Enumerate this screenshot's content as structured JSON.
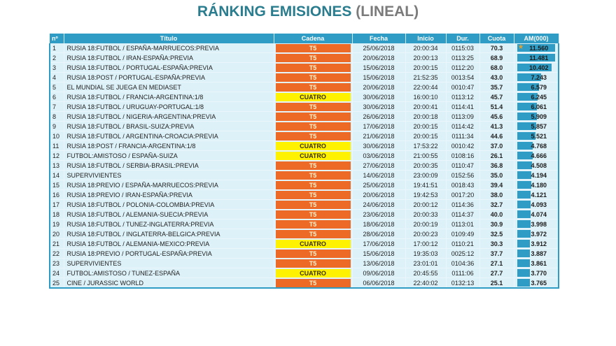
{
  "page_title": {
    "main": "RÁNKING EMISIONES",
    "sub": "(LINEAL)"
  },
  "table": {
    "headers": [
      "nº",
      "Título",
      "Cadena",
      "Fecha",
      "Inicio",
      "Dur.",
      "Cuota",
      "AM(000)"
    ],
    "rows": [
      {
        "n": "1",
        "titulo": "RUSIA 18:FUTBOL / ESPAÑA-MARRUECOS:PREVIA",
        "cadena": "T5",
        "fecha": "25/06/2018",
        "inicio": "20:00:34",
        "dur": "0115:03",
        "cuota": "70.3",
        "am": "11.560",
        "star": true
      },
      {
        "n": "2",
        "titulo": "RUSIA 18:FUTBOL / IRAN-ESPAÑA:PREVIA",
        "cadena": "T5",
        "fecha": "20/06/2018",
        "inicio": "20:00:13",
        "dur": "0113:25",
        "cuota": "68.9",
        "am": "11.481"
      },
      {
        "n": "3",
        "titulo": "RUSIA 18:FUTBOL / PORTUGAL-ESPAÑA:PREVIA",
        "cadena": "T5",
        "fecha": "15/06/2018",
        "inicio": "20:00:15",
        "dur": "0112:20",
        "cuota": "68.0",
        "am": "10.402"
      },
      {
        "n": "4",
        "titulo": "RUSIA 18:POST / PORTUGAL-ESPAÑA:PREVIA",
        "cadena": "T5",
        "fecha": "15/06/2018",
        "inicio": "21:52:35",
        "dur": "0013:54",
        "cuota": "43.0",
        "am": "7.243"
      },
      {
        "n": "5",
        "titulo": "EL MUNDIAL SE JUEGA EN MEDIASET",
        "cadena": "T5",
        "fecha": "20/06/2018",
        "inicio": "22:00:44",
        "dur": "0010:47",
        "cuota": "35.7",
        "am": "6.579"
      },
      {
        "n": "6",
        "titulo": "RUSIA 18:FUTBOL / FRANCIA-ARGENTINA:1/8",
        "cadena": "CUATRO",
        "fecha": "30/06/2018",
        "inicio": "16:00:10",
        "dur": "0113:12",
        "cuota": "45.7",
        "am": "6.245"
      },
      {
        "n": "7",
        "titulo": "RUSIA 18:FUTBOL / URUGUAY-PORTUGAL:1/8",
        "cadena": "T5",
        "fecha": "30/06/2018",
        "inicio": "20:00:41",
        "dur": "0114:41",
        "cuota": "51.4",
        "am": "6.061"
      },
      {
        "n": "8",
        "titulo": "RUSIA 18:FUTBOL / NIGERIA-ARGENTINA:PREVIA",
        "cadena": "T5",
        "fecha": "26/06/2018",
        "inicio": "20:00:18",
        "dur": "0113:09",
        "cuota": "45.6",
        "am": "5.909"
      },
      {
        "n": "9",
        "titulo": "RUSIA 18:FUTBOL / BRASIL-SUIZA:PREVIA",
        "cadena": "T5",
        "fecha": "17/06/2018",
        "inicio": "20:00:15",
        "dur": "0114:42",
        "cuota": "41.3",
        "am": "5.857"
      },
      {
        "n": "10",
        "titulo": "RUSIA 18:FUTBOL / ARGENTINA-CROACIA:PREVIA",
        "cadena": "T5",
        "fecha": "21/06/2018",
        "inicio": "20:00:15",
        "dur": "0111:34",
        "cuota": "44.6",
        "am": "5.521"
      },
      {
        "n": "11",
        "titulo": "RUSIA 18:POST / FRANCIA-ARGENTINA:1/8",
        "cadena": "CUATRO",
        "fecha": "30/06/2018",
        "inicio": "17:53:22",
        "dur": "0010:42",
        "cuota": "37.0",
        "am": "4.768"
      },
      {
        "n": "12",
        "titulo": "FUTBOL:AMISTOSO / ESPAÑA-SUIZA",
        "cadena": "CUATRO",
        "fecha": "03/06/2018",
        "inicio": "21:00:55",
        "dur": "0108:16",
        "cuota": "26.1",
        "am": "4.666"
      },
      {
        "n": "13",
        "titulo": "RUSIA 18:FUTBOL / SERBIA-BRASIL:PREVIA",
        "cadena": "T5",
        "fecha": "27/06/2018",
        "inicio": "20:00:35",
        "dur": "0110:47",
        "cuota": "36.8",
        "am": "4.508"
      },
      {
        "n": "14",
        "titulo": "SUPERVIVIENTES",
        "cadena": "T5",
        "fecha": "14/06/2018",
        "inicio": "23:00:09",
        "dur": "0152:56",
        "cuota": "35.0",
        "am": "4.194"
      },
      {
        "n": "15",
        "titulo": "RUSIA 18:PREVIO / ESPAÑA-MARRUECOS:PREVIA",
        "cadena": "T5",
        "fecha": "25/06/2018",
        "inicio": "19:41:51",
        "dur": "0018:43",
        "cuota": "39.4",
        "am": "4.180"
      },
      {
        "n": "16",
        "titulo": "RUSIA 18:PREVIO / IRAN-ESPAÑA:PREVIA",
        "cadena": "T5",
        "fecha": "20/06/2018",
        "inicio": "19:42:53",
        "dur": "0017:20",
        "cuota": "38.0",
        "am": "4.121"
      },
      {
        "n": "17",
        "titulo": "RUSIA 18:FUTBOL / POLONIA-COLOMBIA:PREVIA",
        "cadena": "T5",
        "fecha": "24/06/2018",
        "inicio": "20:00:12",
        "dur": "0114:36",
        "cuota": "32.7",
        "am": "4.093"
      },
      {
        "n": "18",
        "titulo": "RUSIA 18:FUTBOL / ALEMANIA-SUECIA:PREVIA",
        "cadena": "T5",
        "fecha": "23/06/2018",
        "inicio": "20:00:33",
        "dur": "0114:37",
        "cuota": "40.0",
        "am": "4.074"
      },
      {
        "n": "19",
        "titulo": "RUSIA 18:FUTBOL / TUNEZ-INGLATERRA:PREVIA",
        "cadena": "T5",
        "fecha": "18/06/2018",
        "inicio": "20:00:19",
        "dur": "0113:01",
        "cuota": "30.9",
        "am": "3.998"
      },
      {
        "n": "20",
        "titulo": "RUSIA 18:FUTBOL / INGLATERRA-BELGICA:PREVIA",
        "cadena": "T5",
        "fecha": "28/06/2018",
        "inicio": "20:00:23",
        "dur": "0109:49",
        "cuota": "32.5",
        "am": "3.972"
      },
      {
        "n": "21",
        "titulo": "RUSIA 18:FUTBOL / ALEMANIA-MEXICO:PREVIA",
        "cadena": "CUATRO",
        "fecha": "17/06/2018",
        "inicio": "17:00:12",
        "dur": "0110:21",
        "cuota": "30.3",
        "am": "3.912"
      },
      {
        "n": "22",
        "titulo": "RUSIA 18:PREVIO / PORTUGAL-ESPAÑA:PREVIA",
        "cadena": "T5",
        "fecha": "15/06/2018",
        "inicio": "19:35:03",
        "dur": "0025:12",
        "cuota": "37.7",
        "am": "3.887"
      },
      {
        "n": "23",
        "titulo": "SUPERVIVIENTES",
        "cadena": "T5",
        "fecha": "13/06/2018",
        "inicio": "23:01:01",
        "dur": "0104:36",
        "cuota": "27.1",
        "am": "3.861"
      },
      {
        "n": "24",
        "titulo": "FUTBOL:AMISTOSO / TUNEZ-ESPAÑA",
        "cadena": "CUATRO",
        "fecha": "09/06/2018",
        "inicio": "20:45:55",
        "dur": "0111:06",
        "cuota": "27.7",
        "am": "3.770"
      },
      {
        "n": "25",
        "titulo": "CINE / JURASSIC WORLD",
        "cadena": "T5",
        "fecha": "06/06/2018",
        "inicio": "22:40:02",
        "dur": "0132:13",
        "cuota": "25.1",
        "am": "3.765"
      }
    ]
  },
  "colors": {
    "header": "#2e9cc4",
    "row_bg": "#ddf1f8",
    "t5": "#ec6a25",
    "cuatro": "#fff200",
    "title_main": "#2a7d8e",
    "title_sub": "#7b7b7b"
  }
}
